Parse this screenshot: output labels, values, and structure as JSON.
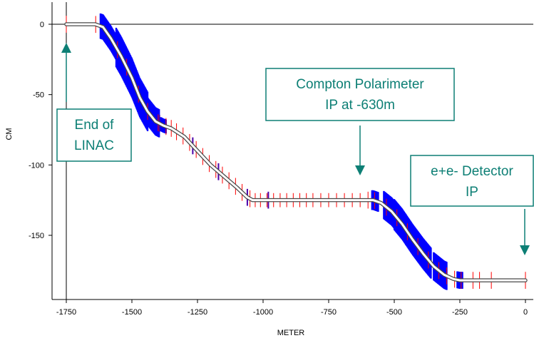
{
  "chart_data": {
    "type": "line",
    "xlabel": "METER",
    "ylabel": "CM",
    "xlim": [
      -1800,
      15
    ],
    "ylim": [
      -194,
      16
    ],
    "xticks": [
      "-1750",
      "-1500",
      "-1250",
      "-1000",
      "-750",
      "-500",
      "-250",
      "0"
    ],
    "xtick_values": [
      -1750,
      -1500,
      -1250,
      -1000,
      -750,
      -500,
      -250,
      0
    ],
    "yticks": [
      "0",
      "-50",
      "-100",
      "-150"
    ],
    "ytick_values": [
      0,
      -50,
      -100,
      -150
    ],
    "grid": false,
    "reference_lines": {
      "horizontal_y": 0,
      "vertical_x": -1750
    },
    "series": [
      {
        "x": [
          -1750,
          -1640,
          -1610,
          -1580,
          -1540,
          -1500,
          -1470,
          -1440,
          -1410,
          -1380,
          -1350,
          -1300,
          -1250,
          -1200,
          -1150,
          -1100,
          -1060,
          -1040,
          -1000,
          -900,
          -800,
          -700,
          -600,
          -580,
          -550,
          -510,
          -470,
          -430,
          -390,
          -350,
          -310,
          -275,
          -250,
          -200,
          -100,
          0
        ],
        "y": [
          0,
          0,
          -2,
          -10,
          -23,
          -38,
          -52,
          -62,
          -69,
          -72,
          -74,
          -80,
          -90,
          -100,
          -108,
          -116,
          -123,
          -125,
          -125,
          -125,
          -125,
          -125,
          -125,
          -125,
          -127,
          -133,
          -142,
          -153,
          -163,
          -172,
          -178,
          -181,
          -182,
          -182,
          -182,
          -182
        ]
      }
    ],
    "elements": {
      "blue_bands": [
        {
          "x0": -1620,
          "x1": -1560,
          "height": 18
        },
        {
          "x0": -1560,
          "x1": -1500,
          "height": 28
        },
        {
          "x0": -1500,
          "x1": -1440,
          "height": 28
        },
        {
          "x0": -1440,
          "x1": -1395,
          "height": 20
        },
        {
          "x0": -1390,
          "x1": -1370,
          "height": 10
        },
        {
          "x0": -585,
          "x1": -560,
          "height": 14
        },
        {
          "x0": -540,
          "x1": -500,
          "height": 20
        },
        {
          "x0": -500,
          "x1": -455,
          "height": 22
        },
        {
          "x0": -455,
          "x1": -410,
          "height": 22
        },
        {
          "x0": -410,
          "x1": -360,
          "height": 22
        },
        {
          "x0": -350,
          "x1": -300,
          "height": 20
        },
        {
          "x0": -260,
          "x1": -240,
          "height": 12
        }
      ],
      "red_markers": [
        -1750,
        -1638,
        -1555,
        -1520,
        -1475,
        -1440,
        -1400,
        -1370,
        -1350,
        -1330,
        -1305,
        -1280,
        -1255,
        -1230,
        -1205,
        -1180,
        -1155,
        -1130,
        -1105,
        -1080,
        -1050,
        -1030,
        -1010,
        -985,
        -960,
        -935,
        -910,
        -885,
        -860,
        -835,
        -810,
        -780,
        -750,
        -720,
        -690,
        -660,
        -630,
        -600,
        -575,
        -530,
        -490,
        -450,
        -410,
        -370,
        -330,
        -300,
        -270,
        -245,
        -200,
        -175,
        -130,
        0
      ],
      "purple_markers": [
        -1395,
        -1268,
        -1170,
        -1060,
        -980
      ]
    },
    "annotations": [
      {
        "lines": [
          "End of",
          "LINAC"
        ],
        "arrow": "up"
      },
      {
        "lines": [
          "Compton Polarimeter",
          "IP at -630m"
        ],
        "arrow": "down"
      },
      {
        "lines": [
          "e+e- Detector",
          "IP"
        ],
        "arrow": "down"
      }
    ],
    "colors": {
      "annotation": "#0d7f75",
      "band": "#0000ff",
      "marker": "#ff0000",
      "purple": "#4b00a8",
      "axis": "#000000",
      "beamline": "#4a4a4a"
    }
  }
}
